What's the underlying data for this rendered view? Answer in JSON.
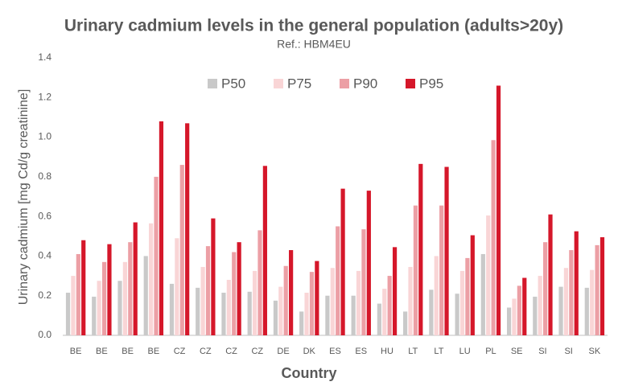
{
  "chart_data": {
    "type": "bar",
    "title": "Urinary cadmium levels in the general population (adults>20y)",
    "subtitle": "Ref.: HBM4EU",
    "x_label": "Country",
    "y_label": "Urinary cadmium [mg Cd/g creatinine]",
    "categories": [
      "BE",
      "BE",
      "BE",
      "BE",
      "CZ",
      "CZ",
      "CZ",
      "CZ",
      "DE",
      "DK",
      "ES",
      "ES",
      "HU",
      "LT",
      "LT",
      "LU",
      "PL",
      "SE",
      "SI",
      "SI",
      "SK"
    ],
    "series": [
      {
        "name": "P50",
        "color": "#c9c9c9",
        "values": [
          0.215,
          0.195,
          0.275,
          0.4,
          0.26,
          0.24,
          0.215,
          0.22,
          0.175,
          0.12,
          0.2,
          0.2,
          0.16,
          0.12,
          0.23,
          0.21,
          0.41,
          0.14,
          0.195,
          0.245,
          0.24
        ]
      },
      {
        "name": "P75",
        "color": "#f9d5d6",
        "values": [
          0.3,
          0.275,
          0.37,
          0.565,
          0.49,
          0.345,
          0.28,
          0.325,
          0.245,
          0.215,
          0.34,
          0.325,
          0.235,
          0.345,
          0.4,
          0.325,
          0.605,
          0.185,
          0.3,
          0.34,
          0.33
        ]
      },
      {
        "name": "P90",
        "color": "#ec9fa5",
        "values": [
          0.41,
          0.37,
          0.47,
          0.8,
          0.86,
          0.45,
          0.42,
          0.53,
          0.35,
          0.32,
          0.55,
          0.535,
          0.3,
          0.655,
          0.655,
          0.39,
          0.985,
          0.25,
          0.47,
          0.43,
          0.455
        ]
      },
      {
        "name": "P95",
        "color": "#d5172a",
        "values": [
          0.48,
          0.46,
          0.57,
          1.08,
          1.07,
          0.59,
          0.47,
          0.855,
          0.43,
          0.375,
          0.74,
          0.73,
          0.445,
          0.865,
          0.85,
          0.505,
          1.26,
          0.29,
          0.61,
          0.525,
          0.495
        ]
      }
    ],
    "ylim": [
      0,
      1.4
    ],
    "yticks": [
      {
        "value": 0,
        "label": "0.0"
      },
      0.2,
      0.4,
      0.6,
      0.8,
      {
        "value": 1,
        "label": "1.0"
      },
      1.2,
      1.4
    ],
    "grid": false,
    "legend": "top"
  }
}
